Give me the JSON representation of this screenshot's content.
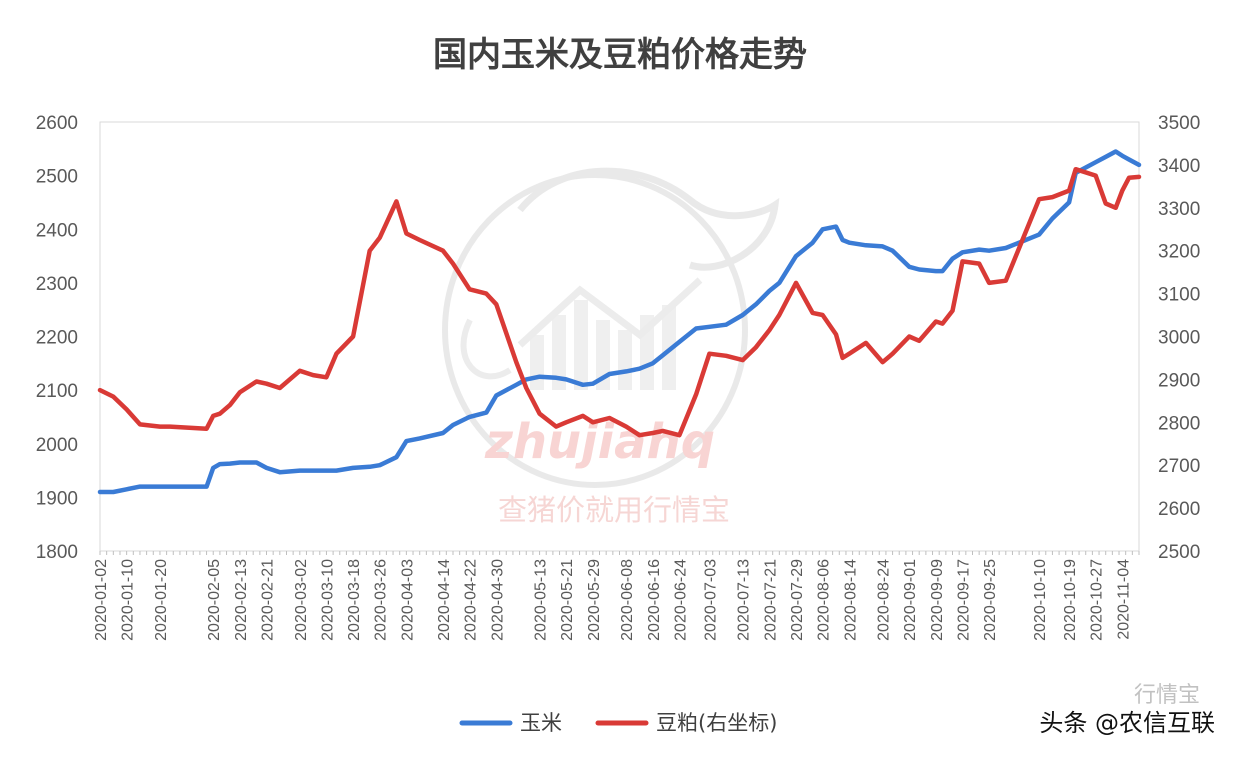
{
  "chart_data": {
    "type": "line",
    "title": "国内玉米及豆粕价格走势",
    "x_ticks": [
      "2020-01-02",
      "2020-01-10",
      "2020-01-20",
      "2020-02-05",
      "2020-02-13",
      "2020-02-21",
      "2020-03-02",
      "2020-03-10",
      "2020-03-18",
      "2020-03-26",
      "2020-04-03",
      "2020-04-14",
      "2020-04-22",
      "2020-04-30",
      "2020-05-13",
      "2020-05-21",
      "2020-05-29",
      "2020-06-08",
      "2020-06-16",
      "2020-06-24",
      "2020-07-03",
      "2020-07-13",
      "2020-07-21",
      "2020-07-29",
      "2020-08-06",
      "2020-08-14",
      "2020-08-24",
      "2020-09-01",
      "2020-09-09",
      "2020-09-17",
      "2020-09-25",
      "2020-10-10",
      "2020-10-19",
      "2020-10-27",
      "2020-11-04"
    ],
    "y_left": {
      "min": 1800,
      "max": 2600,
      "ticks": [
        "1800",
        "1900",
        "2000",
        "2100",
        "2200",
        "2300",
        "2400",
        "2500",
        "2600"
      ]
    },
    "y_right": {
      "min": 2500,
      "max": 3500,
      "ticks": [
        "2500",
        "2600",
        "2700",
        "2800",
        "2900",
        "3000",
        "3100",
        "3200",
        "3300",
        "3400",
        "3500"
      ]
    },
    "grid": false,
    "legend_position": "bottom",
    "series": [
      {
        "name": "玉米",
        "axis": "left",
        "color": "#3a7bd5",
        "points": [
          [
            "2020-01-02",
            1910
          ],
          [
            "2020-01-06",
            1910
          ],
          [
            "2020-01-10",
            1915
          ],
          [
            "2020-01-14",
            1920
          ],
          [
            "2020-01-20",
            1920
          ],
          [
            "2020-01-23",
            1920
          ],
          [
            "2020-02-03",
            1920
          ],
          [
            "2020-02-05",
            1955
          ],
          [
            "2020-02-07",
            1962
          ],
          [
            "2020-02-10",
            1963
          ],
          [
            "2020-02-13",
            1965
          ],
          [
            "2020-02-18",
            1965
          ],
          [
            "2020-02-21",
            1955
          ],
          [
            "2020-02-25",
            1947
          ],
          [
            "2020-03-02",
            1950
          ],
          [
            "2020-03-06",
            1950
          ],
          [
            "2020-03-10",
            1950
          ],
          [
            "2020-03-13",
            1950
          ],
          [
            "2020-03-18",
            1955
          ],
          [
            "2020-03-23",
            1957
          ],
          [
            "2020-03-26",
            1960
          ],
          [
            "2020-03-31",
            1975
          ],
          [
            "2020-04-03",
            2005
          ],
          [
            "2020-04-07",
            2010
          ],
          [
            "2020-04-14",
            2020
          ],
          [
            "2020-04-17",
            2035
          ],
          [
            "2020-04-22",
            2050
          ],
          [
            "2020-04-27",
            2058
          ],
          [
            "2020-04-30",
            2090
          ],
          [
            "2020-05-06",
            2110
          ],
          [
            "2020-05-09",
            2120
          ],
          [
            "2020-05-13",
            2125
          ],
          [
            "2020-05-18",
            2123
          ],
          [
            "2020-05-21",
            2120
          ],
          [
            "2020-05-26",
            2110
          ],
          [
            "2020-05-29",
            2112
          ],
          [
            "2020-06-03",
            2130
          ],
          [
            "2020-06-08",
            2135
          ],
          [
            "2020-06-12",
            2140
          ],
          [
            "2020-06-16",
            2150
          ],
          [
            "2020-06-19",
            2165
          ],
          [
            "2020-06-24",
            2190
          ],
          [
            "2020-06-29",
            2215
          ],
          [
            "2020-07-03",
            2218
          ],
          [
            "2020-07-08",
            2222
          ],
          [
            "2020-07-13",
            2240
          ],
          [
            "2020-07-17",
            2260
          ],
          [
            "2020-07-21",
            2285
          ],
          [
            "2020-07-24",
            2300
          ],
          [
            "2020-07-29",
            2350
          ],
          [
            "2020-08-03",
            2375
          ],
          [
            "2020-08-06",
            2400
          ],
          [
            "2020-08-10",
            2405
          ],
          [
            "2020-08-12",
            2380
          ],
          [
            "2020-08-14",
            2375
          ],
          [
            "2020-08-19",
            2370
          ],
          [
            "2020-08-24",
            2368
          ],
          [
            "2020-08-27",
            2360
          ],
          [
            "2020-09-01",
            2330
          ],
          [
            "2020-09-04",
            2325
          ],
          [
            "2020-09-09",
            2322
          ],
          [
            "2020-09-11",
            2322
          ],
          [
            "2020-09-14",
            2345
          ],
          [
            "2020-09-17",
            2357
          ],
          [
            "2020-09-22",
            2362
          ],
          [
            "2020-09-25",
            2360
          ],
          [
            "2020-09-30",
            2365
          ],
          [
            "2020-10-10",
            2390
          ],
          [
            "2020-10-14",
            2420
          ],
          [
            "2020-10-19",
            2450
          ],
          [
            "2020-10-21",
            2505
          ],
          [
            "2020-10-27",
            2525
          ],
          [
            "2020-10-30",
            2535
          ],
          [
            "2020-11-02",
            2545
          ],
          [
            "2020-11-04",
            2537
          ],
          [
            "2020-11-06",
            2530
          ],
          [
            "2020-11-09",
            2520
          ]
        ]
      },
      {
        "name": "豆粕(右坐标)",
        "axis": "right",
        "color": "#d93a36",
        "points": [
          [
            "2020-01-02",
            2875
          ],
          [
            "2020-01-06",
            2860
          ],
          [
            "2020-01-10",
            2830
          ],
          [
            "2020-01-14",
            2795
          ],
          [
            "2020-01-20",
            2790
          ],
          [
            "2020-01-23",
            2790
          ],
          [
            "2020-02-03",
            2785
          ],
          [
            "2020-02-05",
            2815
          ],
          [
            "2020-02-07",
            2820
          ],
          [
            "2020-02-10",
            2840
          ],
          [
            "2020-02-13",
            2870
          ],
          [
            "2020-02-18",
            2895
          ],
          [
            "2020-02-21",
            2890
          ],
          [
            "2020-02-25",
            2880
          ],
          [
            "2020-03-02",
            2920
          ],
          [
            "2020-03-06",
            2910
          ],
          [
            "2020-03-10",
            2905
          ],
          [
            "2020-03-13",
            2960
          ],
          [
            "2020-03-18",
            3000
          ],
          [
            "2020-03-23",
            3200
          ],
          [
            "2020-03-26",
            3230
          ],
          [
            "2020-03-31",
            3315
          ],
          [
            "2020-04-03",
            3240
          ],
          [
            "2020-04-07",
            3225
          ],
          [
            "2020-04-14",
            3200
          ],
          [
            "2020-04-17",
            3170
          ],
          [
            "2020-04-22",
            3110
          ],
          [
            "2020-04-27",
            3100
          ],
          [
            "2020-04-30",
            3075
          ],
          [
            "2020-05-06",
            2940
          ],
          [
            "2020-05-09",
            2880
          ],
          [
            "2020-05-13",
            2820
          ],
          [
            "2020-05-18",
            2790
          ],
          [
            "2020-05-21",
            2800
          ],
          [
            "2020-05-26",
            2815
          ],
          [
            "2020-05-29",
            2800
          ],
          [
            "2020-06-03",
            2810
          ],
          [
            "2020-06-08",
            2790
          ],
          [
            "2020-06-12",
            2770
          ],
          [
            "2020-06-16",
            2775
          ],
          [
            "2020-06-19",
            2780
          ],
          [
            "2020-06-24",
            2770
          ],
          [
            "2020-06-29",
            2865
          ],
          [
            "2020-07-03",
            2960
          ],
          [
            "2020-07-08",
            2955
          ],
          [
            "2020-07-13",
            2945
          ],
          [
            "2020-07-17",
            2975
          ],
          [
            "2020-07-21",
            3015
          ],
          [
            "2020-07-24",
            3050
          ],
          [
            "2020-07-29",
            3125
          ],
          [
            "2020-08-03",
            3055
          ],
          [
            "2020-08-06",
            3050
          ],
          [
            "2020-08-10",
            3005
          ],
          [
            "2020-08-12",
            2950
          ],
          [
            "2020-08-14",
            2960
          ],
          [
            "2020-08-19",
            2985
          ],
          [
            "2020-08-24",
            2940
          ],
          [
            "2020-08-27",
            2960
          ],
          [
            "2020-09-01",
            3000
          ],
          [
            "2020-09-04",
            2990
          ],
          [
            "2020-09-09",
            3035
          ],
          [
            "2020-09-11",
            3030
          ],
          [
            "2020-09-14",
            3060
          ],
          [
            "2020-09-17",
            3175
          ],
          [
            "2020-09-22",
            3170
          ],
          [
            "2020-09-25",
            3125
          ],
          [
            "2020-09-30",
            3130
          ],
          [
            "2020-10-10",
            3320
          ],
          [
            "2020-10-14",
            3325
          ],
          [
            "2020-10-19",
            3340
          ],
          [
            "2020-10-21",
            3390
          ],
          [
            "2020-10-27",
            3375
          ],
          [
            "2020-10-30",
            3310
          ],
          [
            "2020-11-02",
            3300
          ],
          [
            "2020-11-04",
            3340
          ],
          [
            "2020-11-06",
            3370
          ],
          [
            "2020-11-09",
            3372
          ]
        ]
      }
    ]
  },
  "legend": {
    "items": [
      {
        "label": "玉米",
        "color": "#3a7bd5"
      },
      {
        "label": "豆粕(右坐标)",
        "color": "#d93a36"
      }
    ]
  },
  "watermark": {
    "text_latin": "zhujiahq",
    "text_cn": "查猪价就用行情宝",
    "top_right": "行情宝"
  },
  "footer": {
    "source": "头条 @农信互联"
  }
}
